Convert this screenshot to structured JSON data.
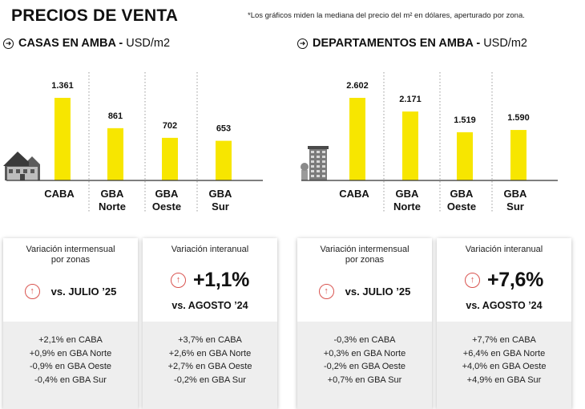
{
  "header": {
    "title": "PRECIOS DE VENTA",
    "footnote": "*Los gráficos miden la mediana del precio del m² en dólares, aperturado por zona."
  },
  "sections": [
    {
      "title": "CASAS EN AMBA - ",
      "unit": "USD/m2"
    },
    {
      "title": "DEPARTAMENTOS EN AMBA - ",
      "unit": "USD/m2"
    }
  ],
  "chart_data": [
    {
      "type": "bar",
      "title": "CASAS EN AMBA - USD/m2",
      "categories": [
        "CABA",
        "GBA Norte",
        "GBA Oeste",
        "GBA Sur"
      ],
      "category_lines": [
        [
          "CABA"
        ],
        [
          "GBA",
          "Norte"
        ],
        [
          "GBA",
          "Oeste"
        ],
        [
          "GBA",
          "Sur"
        ]
      ],
      "values": [
        1361,
        861,
        702,
        653
      ],
      "value_labels": [
        "1.361",
        "861",
        "702",
        "653"
      ],
      "bar_color": "#f7e600",
      "ylim": [
        0,
        1361
      ],
      "icon": "house-icon"
    },
    {
      "type": "bar",
      "title": "DEPARTAMENTOS EN AMBA - USD/m2",
      "categories": [
        "CABA",
        "GBA Norte",
        "GBA Oeste",
        "GBA Sur"
      ],
      "category_lines": [
        [
          "CABA"
        ],
        [
          "GBA",
          "Norte"
        ],
        [
          "GBA",
          "Oeste"
        ],
        [
          "GBA",
          "Sur"
        ]
      ],
      "values": [
        2602,
        2171,
        1519,
        1590
      ],
      "value_labels": [
        "2.602",
        "2.171",
        "1.519",
        "1.590"
      ],
      "bar_color": "#f7e600",
      "ylim": [
        0,
        2602
      ],
      "icon": "building-icon"
    }
  ],
  "cards": [
    {
      "label": "Variación intermensual\npor zonas",
      "vs": "vs. JULIO ’25",
      "lines": [
        "+2,1% en CABA",
        "+0,9% en GBA Norte",
        "-0,9% en GBA Oeste",
        "-0,4% en GBA Sur"
      ]
    },
    {
      "label": "Variación interanual",
      "value": "+1,1%",
      "vs": "vs. AGOSTO ’24",
      "lines": [
        "+3,7% en CABA",
        "+2,6% en GBA Norte",
        "+2,7% en GBA Oeste",
        "-0,2% en GBA Sur"
      ]
    },
    {
      "label": "Variación intermensual\npor zonas",
      "vs": "vs. JULIO ’25",
      "lines": [
        "-0,3% en CABA",
        "+0,3% en GBA Norte",
        "-0,2% en GBA Oeste",
        "+0,7% en GBA Sur"
      ]
    },
    {
      "label": "Variación interanual",
      "value": "+7,6%",
      "vs": "vs. AGOSTO ’24",
      "lines": [
        "+7,7% en CABA",
        "+6,4% en GBA Norte",
        "+4,0% en GBA Oeste",
        "+4,9% en GBA Sur"
      ]
    }
  ]
}
